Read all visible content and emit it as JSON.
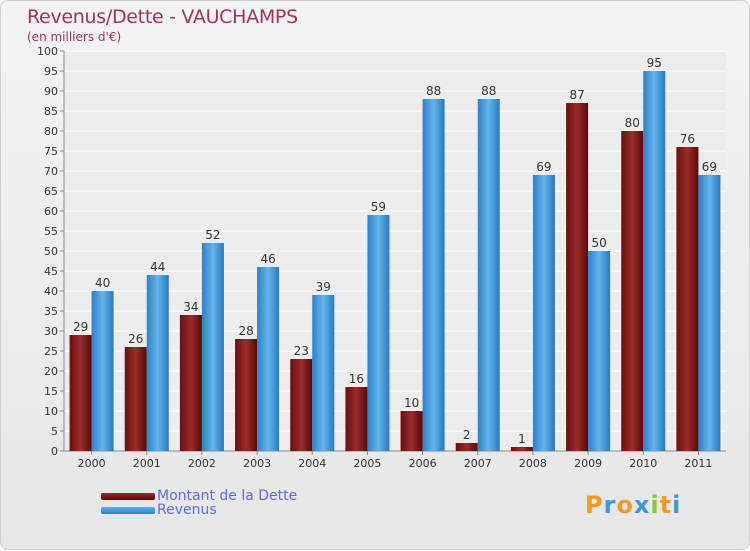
{
  "chart_data": {
    "type": "bar",
    "title": "Revenus/Dette - VAUCHAMPS",
    "subtitle": "(en milliers d'€)",
    "categories": [
      "2000",
      "2001",
      "2002",
      "2003",
      "2004",
      "2005",
      "2006",
      "2007",
      "2008",
      "2009",
      "2010",
      "2011"
    ],
    "series": [
      {
        "name": "Montant de la Dette",
        "color": "#7a1616",
        "values": [
          29,
          26,
          34,
          28,
          23,
          16,
          10,
          2,
          1,
          87,
          80,
          76
        ]
      },
      {
        "name": "Revenus",
        "color": "#3d97d9",
        "values": [
          40,
          44,
          52,
          46,
          39,
          59,
          88,
          88,
          69,
          50,
          95,
          69
        ]
      }
    ],
    "ylim": [
      0,
      100
    ],
    "yticks": [
      0,
      5,
      10,
      15,
      20,
      25,
      30,
      35,
      40,
      45,
      50,
      55,
      60,
      65,
      70,
      75,
      80,
      85,
      90,
      95,
      100
    ],
    "grid": true,
    "legend": "bottom-left"
  },
  "logo": {
    "text": "Proxiti"
  }
}
